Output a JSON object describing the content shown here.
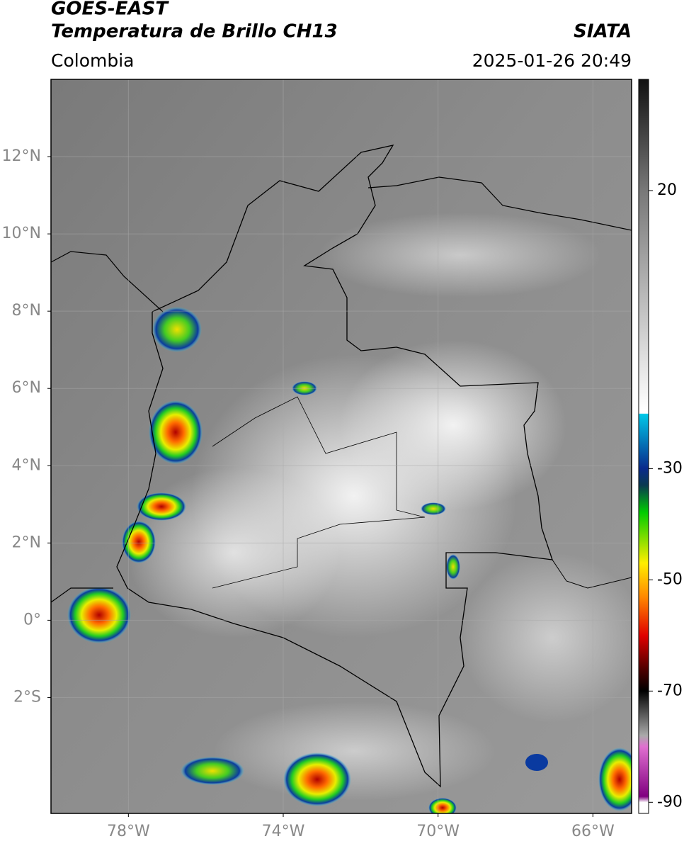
{
  "header": {
    "title": "GOES-EAST",
    "subtitle": "Temperatura de Brillo CH13",
    "source": "SIATA",
    "region": "Colombia",
    "timestamp": "2025-01-26 20:49"
  },
  "map": {
    "xlim": [
      -80,
      -65
    ],
    "ylim": [
      -5,
      14
    ],
    "xticks": [
      {
        "value": -78,
        "label": "78°W"
      },
      {
        "value": -74,
        "label": "74°W"
      },
      {
        "value": -70,
        "label": "70°W"
      },
      {
        "value": -66,
        "label": "66°W"
      }
    ],
    "yticks": [
      {
        "value": 12,
        "label": "12°N"
      },
      {
        "value": 10,
        "label": "10°N"
      },
      {
        "value": 8,
        "label": "8°N"
      },
      {
        "value": 6,
        "label": "6°N"
      },
      {
        "value": 4,
        "label": "4°N"
      },
      {
        "value": 2,
        "label": "2°N"
      },
      {
        "value": 0,
        "label": "0°"
      },
      {
        "value": -2,
        "label": "2°S"
      }
    ],
    "grid": true
  },
  "colorbar": {
    "lim": [
      -92,
      40
    ],
    "ticks": [
      20,
      -30,
      -50,
      -70,
      -90
    ]
  }
}
